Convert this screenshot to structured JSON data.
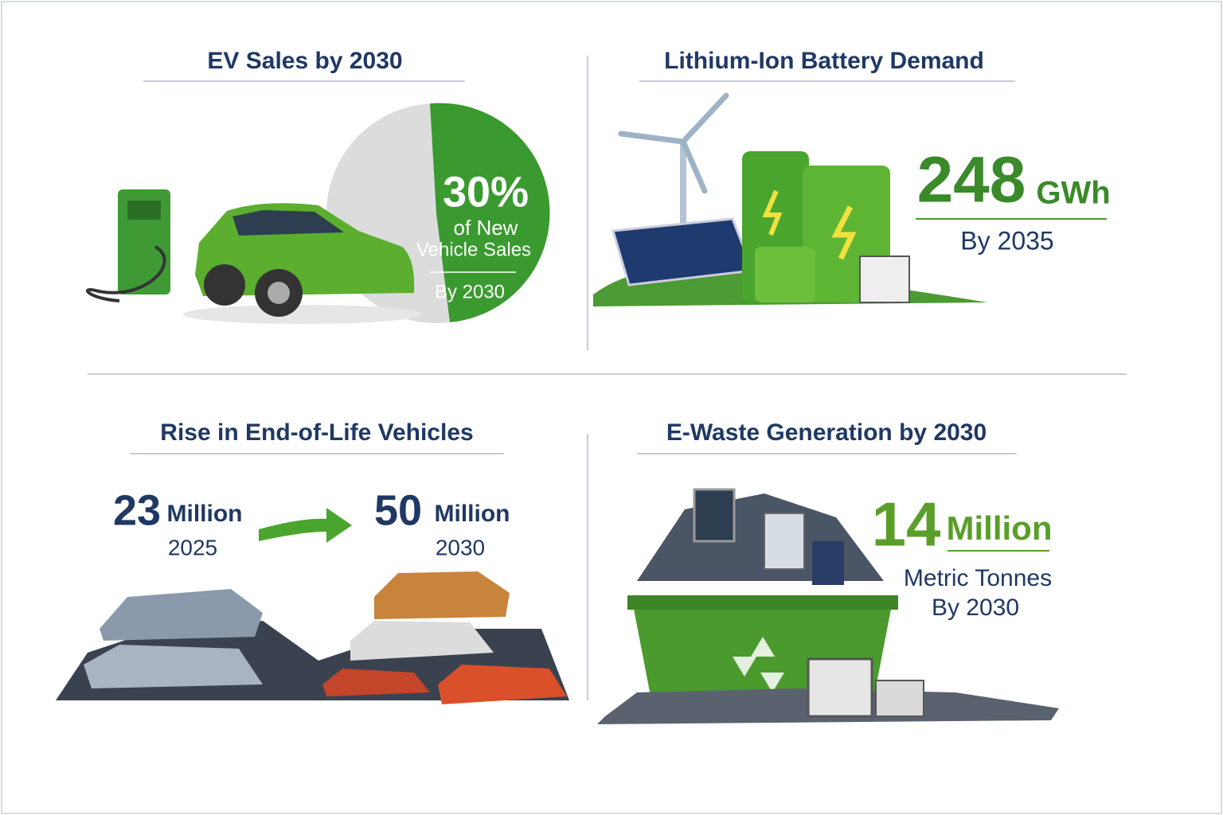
{
  "panels": [
    {
      "title": "EV Sales by 2030",
      "stat": "30%",
      "lines": [
        "of New",
        "Vehicle Sales",
        "By 2030"
      ]
    },
    {
      "title": "Lithium-Ion Battery Demand",
      "stat": "248",
      "unit": "GWh",
      "lines": [
        "By 2035"
      ]
    },
    {
      "title": "Rise in End-of-Life Vehicles",
      "from": {
        "value": "23",
        "unit": "Million",
        "year": "2025"
      },
      "to": {
        "value": "50",
        "unit": "Million",
        "year": "2030"
      }
    },
    {
      "title": "E-Waste Generation by 2030",
      "stat": "14",
      "unit": "Million",
      "lines": [
        "Metric Tonnes",
        "By 2030"
      ]
    }
  ]
}
